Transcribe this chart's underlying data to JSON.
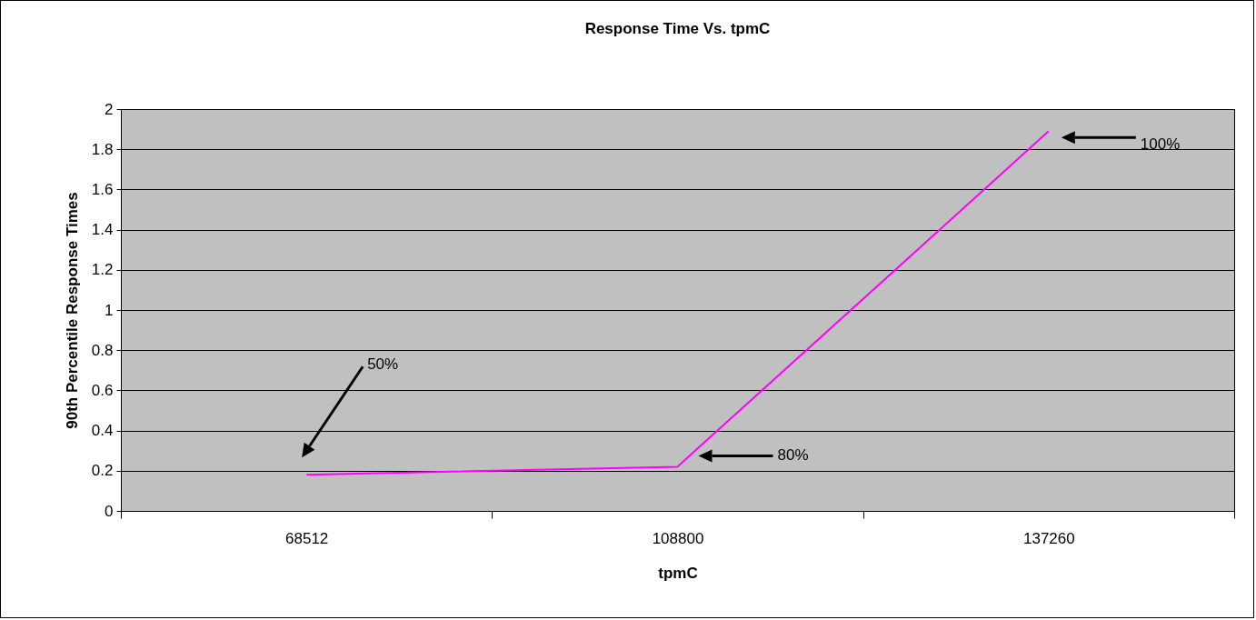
{
  "chart_data": {
    "type": "line",
    "title": "Response Time Vs. tpmC",
    "xlabel": "tpmC",
    "ylabel": "90th Percentile Response Times",
    "categories": [
      "68512",
      "108800",
      "137260"
    ],
    "series": [
      {
        "color": "#ff00ff",
        "values": [
          0.18,
          0.22,
          1.89
        ]
      }
    ],
    "ylim": [
      0,
      2
    ],
    "yticks": [
      0,
      0.2,
      0.4,
      0.6,
      0.8,
      1,
      1.2,
      1.4,
      1.6,
      1.8,
      2
    ],
    "grid": "y",
    "marker": "none",
    "line_style": "solid",
    "annotations": [
      "50%",
      "80%",
      "100%"
    ]
  }
}
